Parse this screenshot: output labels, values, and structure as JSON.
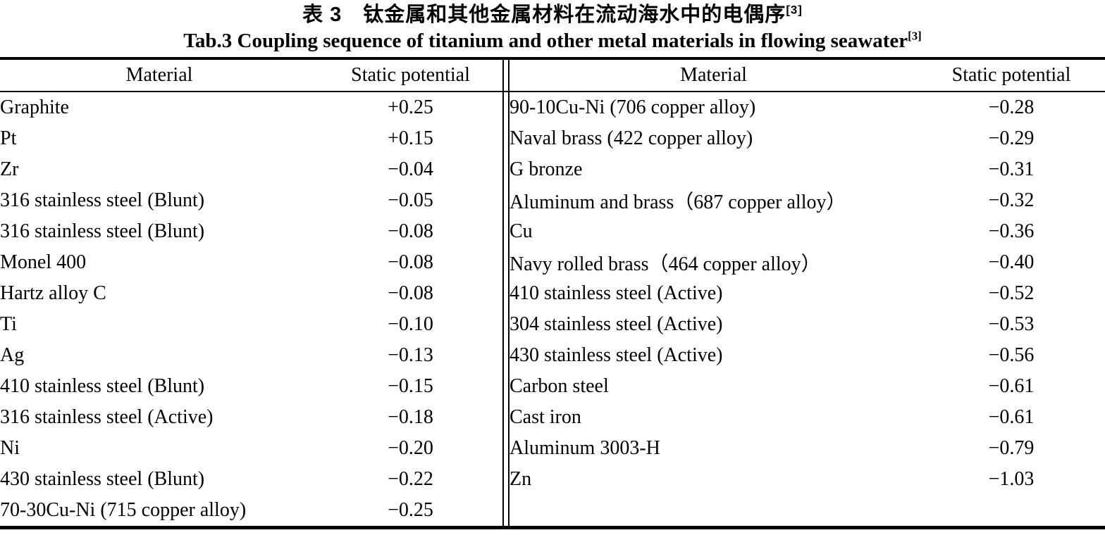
{
  "title": {
    "cn": "表 3　钛金属和其他金属材料在流动海水中的电偶序",
    "cn_sup": "[3]",
    "en": "Tab.3 Coupling sequence of titanium and other metal materials in flowing seawater",
    "en_sup": "[3]"
  },
  "table": {
    "headers": {
      "material": "Material",
      "potential": "Static potential"
    },
    "left_rows": [
      {
        "material": "Graphite",
        "potential": "+0.25"
      },
      {
        "material": "Pt",
        "potential": "+0.15"
      },
      {
        "material": "Zr",
        "potential": "−0.04"
      },
      {
        "material": "316 stainless steel (Blunt)",
        "potential": "−0.05"
      },
      {
        "material": "316 stainless steel (Blunt)",
        "potential": "−0.08"
      },
      {
        "material": "Monel 400",
        "potential": "−0.08"
      },
      {
        "material": "Hartz alloy C",
        "potential": "−0.08"
      },
      {
        "material": "Ti",
        "potential": "−0.10"
      },
      {
        "material": "Ag",
        "potential": "−0.13"
      },
      {
        "material": "410 stainless steel (Blunt)",
        "potential": "−0.15"
      },
      {
        "material": "316 stainless steel (Active)",
        "potential": "−0.18"
      },
      {
        "material": "Ni",
        "potential": "−0.20"
      },
      {
        "material": "430 stainless steel (Blunt)",
        "potential": "−0.22"
      },
      {
        "material": "70-30Cu-Ni (715 copper alloy)",
        "potential": "−0.25"
      }
    ],
    "right_rows": [
      {
        "material": "90-10Cu-Ni (706 copper alloy)",
        "potential": "−0.28"
      },
      {
        "material": "Naval brass (422 copper alloy)",
        "potential": "−0.29"
      },
      {
        "material": "G bronze",
        "potential": "−0.31"
      },
      {
        "material": "Aluminum and brass（687 copper alloy）",
        "potential": "−0.32"
      },
      {
        "material": "Cu",
        "potential": "−0.36"
      },
      {
        "material": "Navy rolled brass（464 copper alloy）",
        "potential": "−0.40"
      },
      {
        "material": "410 stainless steel (Active)",
        "potential": "−0.52"
      },
      {
        "material": "304 stainless steel (Active)",
        "potential": "−0.53"
      },
      {
        "material": "430 stainless steel (Active)",
        "potential": "−0.56"
      },
      {
        "material": "Carbon steel",
        "potential": "−0.61"
      },
      {
        "material": "Cast iron",
        "potential": "−0.61"
      },
      {
        "material": "Aluminum 3003-H",
        "potential": "−0.79"
      },
      {
        "material": "Zn",
        "potential": "−1.03"
      },
      {
        "material": "",
        "potential": ""
      }
    ]
  }
}
